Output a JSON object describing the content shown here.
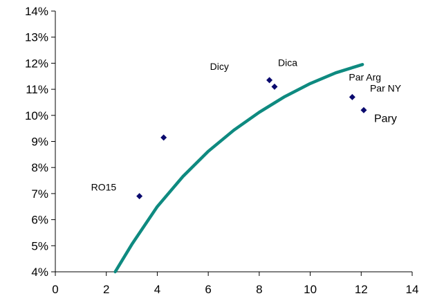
{
  "chart_data": {
    "type": "scatter",
    "title": "",
    "xlabel": "",
    "ylabel": "",
    "xlim": [
      0,
      14
    ],
    "ylim": [
      0.04,
      0.14
    ],
    "xticks": [
      0,
      2,
      4,
      6,
      8,
      10,
      12,
      14
    ],
    "yticks": [
      0.04,
      0.05,
      0.06,
      0.07,
      0.08,
      0.09,
      0.1,
      0.11,
      0.12,
      0.13,
      0.14
    ],
    "xtick_labels": [
      "0",
      "2",
      "4",
      "6",
      "8",
      "10",
      "12",
      "14"
    ],
    "ytick_labels": [
      "4%",
      "5%",
      "6%",
      "7%",
      "8%",
      "9%",
      "10%",
      "11%",
      "12%",
      "13%",
      "14%"
    ],
    "grid": false,
    "legend": "none",
    "marker_color": "#0a0a6e",
    "curve_color": "#0e8a80",
    "points": [
      {
        "label": "RO15",
        "x": 3.3,
        "y": 0.069
      },
      {
        "label": "",
        "x": 4.25,
        "y": 0.0915
      },
      {
        "label": "Dicy",
        "x": 8.4,
        "y": 0.1135
      },
      {
        "label": "Dica",
        "x": 8.6,
        "y": 0.111
      },
      {
        "label": "Par Arg",
        "x": 11.65,
        "y": 0.107
      },
      {
        "label": "Par NY",
        "x": 12.1,
        "y": 0.102
      },
      {
        "label": "Pary",
        "x": 12.1,
        "y": 0.102
      }
    ],
    "fitted_curve": [
      {
        "x": 2.35,
        "y": 0.04
      },
      {
        "x": 3.0,
        "y": 0.0505
      },
      {
        "x": 4.0,
        "y": 0.065
      },
      {
        "x": 5.0,
        "y": 0.0765
      },
      {
        "x": 6.0,
        "y": 0.0862
      },
      {
        "x": 7.0,
        "y": 0.0943
      },
      {
        "x": 8.0,
        "y": 0.1012
      },
      {
        "x": 9.0,
        "y": 0.1072
      },
      {
        "x": 10.0,
        "y": 0.1122
      },
      {
        "x": 11.0,
        "y": 0.1163
      },
      {
        "x": 12.05,
        "y": 0.1195
      }
    ]
  }
}
